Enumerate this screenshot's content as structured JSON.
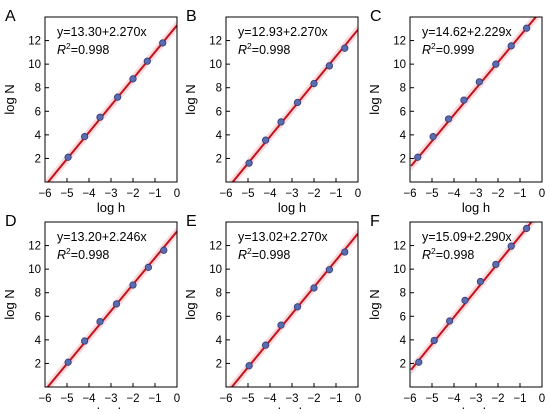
{
  "styles": {
    "line_color": "#c0141c",
    "band_color": "#f5b8bd",
    "point_fill": "#5a6cae",
    "point_stroke": "#2f3a78",
    "axis_color": "#000000"
  },
  "chart_data": [
    {
      "panel": "A",
      "type": "scatter",
      "xlabel": "log h",
      "ylabel": "log N",
      "xlim": [
        -6,
        0
      ],
      "ylim": [
        0,
        14
      ],
      "xticks": [
        -6,
        -5,
        -4,
        -3,
        -2,
        -1,
        0
      ],
      "yticks": [
        2,
        4,
        6,
        8,
        10,
        12
      ],
      "grid": false,
      "fit": {
        "intercept": 13.3,
        "slope": 2.27,
        "eq_text": "y=13.30+2.270x",
        "r2_label": "R",
        "r2_sup": "2",
        "r2_value": "=0.998"
      },
      "points": [
        [
          -4.95,
          2.1
        ],
        [
          -4.2,
          3.85
        ],
        [
          -3.5,
          5.5
        ],
        [
          -2.7,
          7.2
        ],
        [
          -2.0,
          8.75
        ],
        [
          -1.35,
          10.25
        ],
        [
          -0.65,
          11.8
        ]
      ]
    },
    {
      "panel": "B",
      "type": "scatter",
      "xlabel": "log h",
      "ylabel": "log N",
      "xlim": [
        -6,
        0
      ],
      "ylim": [
        0,
        14
      ],
      "xticks": [
        -6,
        -5,
        -4,
        -3,
        -2,
        -1,
        0
      ],
      "yticks": [
        2,
        4,
        6,
        8,
        10,
        12
      ],
      "grid": false,
      "fit": {
        "intercept": 12.93,
        "slope": 2.27,
        "eq_text": "y=12.93+2.270x",
        "r2_label": "R",
        "r2_sup": "2",
        "r2_value": "=0.998"
      },
      "points": [
        [
          -4.95,
          1.6
        ],
        [
          -4.2,
          3.55
        ],
        [
          -3.5,
          5.1
        ],
        [
          -2.75,
          6.75
        ],
        [
          -2.0,
          8.35
        ],
        [
          -1.3,
          9.85
        ],
        [
          -0.6,
          11.35
        ]
      ]
    },
    {
      "panel": "C",
      "type": "scatter",
      "xlabel": "log h",
      "ylabel": "log N",
      "xlim": [
        -6,
        0
      ],
      "ylim": [
        0,
        14
      ],
      "xticks": [
        -6,
        -5,
        -4,
        -3,
        -2,
        -1,
        0
      ],
      "yticks": [
        2,
        4,
        6,
        8,
        10,
        12
      ],
      "grid": false,
      "fit": {
        "intercept": 14.62,
        "slope": 2.229,
        "eq_text": "y=14.62+2.229x",
        "r2_label": "R",
        "r2_sup": "2",
        "r2_value": "=0.999"
      },
      "points": [
        [
          -5.65,
          2.1
        ],
        [
          -4.95,
          3.85
        ],
        [
          -4.25,
          5.35
        ],
        [
          -3.55,
          6.95
        ],
        [
          -2.85,
          8.5
        ],
        [
          -2.1,
          10.0
        ],
        [
          -1.4,
          11.55
        ],
        [
          -0.7,
          13.05
        ]
      ]
    },
    {
      "panel": "D",
      "type": "scatter",
      "xlabel": "log h",
      "ylabel": "log N",
      "xlim": [
        -6,
        0
      ],
      "ylim": [
        0,
        14
      ],
      "xticks": [
        -6,
        -5,
        -4,
        -3,
        -2,
        -1,
        0
      ],
      "yticks": [
        2,
        4,
        6,
        8,
        10,
        12
      ],
      "grid": false,
      "fit": {
        "intercept": 13.2,
        "slope": 2.246,
        "eq_text": "y=13.20+2.246x",
        "r2_label": "R",
        "r2_sup": "2",
        "r2_value": "=0.998"
      },
      "points": [
        [
          -4.95,
          2.1
        ],
        [
          -4.2,
          3.9
        ],
        [
          -3.5,
          5.55
        ],
        [
          -2.75,
          7.05
        ],
        [
          -2.0,
          8.65
        ],
        [
          -1.3,
          10.15
        ],
        [
          -0.6,
          11.6
        ]
      ]
    },
    {
      "panel": "E",
      "type": "scatter",
      "xlabel": "log h",
      "ylabel": "log N",
      "xlim": [
        -6,
        0
      ],
      "ylim": [
        0,
        14
      ],
      "xticks": [
        -6,
        -5,
        -4,
        -3,
        -2,
        -1,
        0
      ],
      "yticks": [
        2,
        4,
        6,
        8,
        10,
        12
      ],
      "grid": false,
      "fit": {
        "intercept": 13.02,
        "slope": 2.27,
        "eq_text": "y=13.02+2.270x",
        "r2_label": "R",
        "r2_sup": "2",
        "r2_value": "=0.998"
      },
      "points": [
        [
          -4.95,
          1.8
        ],
        [
          -4.2,
          3.55
        ],
        [
          -3.5,
          5.25
        ],
        [
          -2.75,
          6.8
        ],
        [
          -2.0,
          8.4
        ],
        [
          -1.3,
          9.95
        ],
        [
          -0.6,
          11.45
        ]
      ]
    },
    {
      "panel": "F",
      "type": "scatter",
      "xlabel": "log h",
      "ylabel": "log N",
      "xlim": [
        -6,
        0
      ],
      "ylim": [
        0,
        14
      ],
      "xticks": [
        -6,
        -5,
        -4,
        -3,
        -2,
        -1,
        0
      ],
      "yticks": [
        2,
        4,
        6,
        8,
        10,
        12
      ],
      "grid": false,
      "fit": {
        "intercept": 15.09,
        "slope": 2.29,
        "eq_text": "y=15.09+2.290x",
        "r2_label": "R",
        "r2_sup": "2",
        "r2_value": "=0.998"
      },
      "points": [
        [
          -5.6,
          2.1
        ],
        [
          -4.9,
          3.95
        ],
        [
          -4.2,
          5.6
        ],
        [
          -3.5,
          7.35
        ],
        [
          -2.8,
          8.95
        ],
        [
          -2.1,
          10.4
        ],
        [
          -1.4,
          11.95
        ],
        [
          -0.7,
          13.45
        ]
      ]
    }
  ]
}
